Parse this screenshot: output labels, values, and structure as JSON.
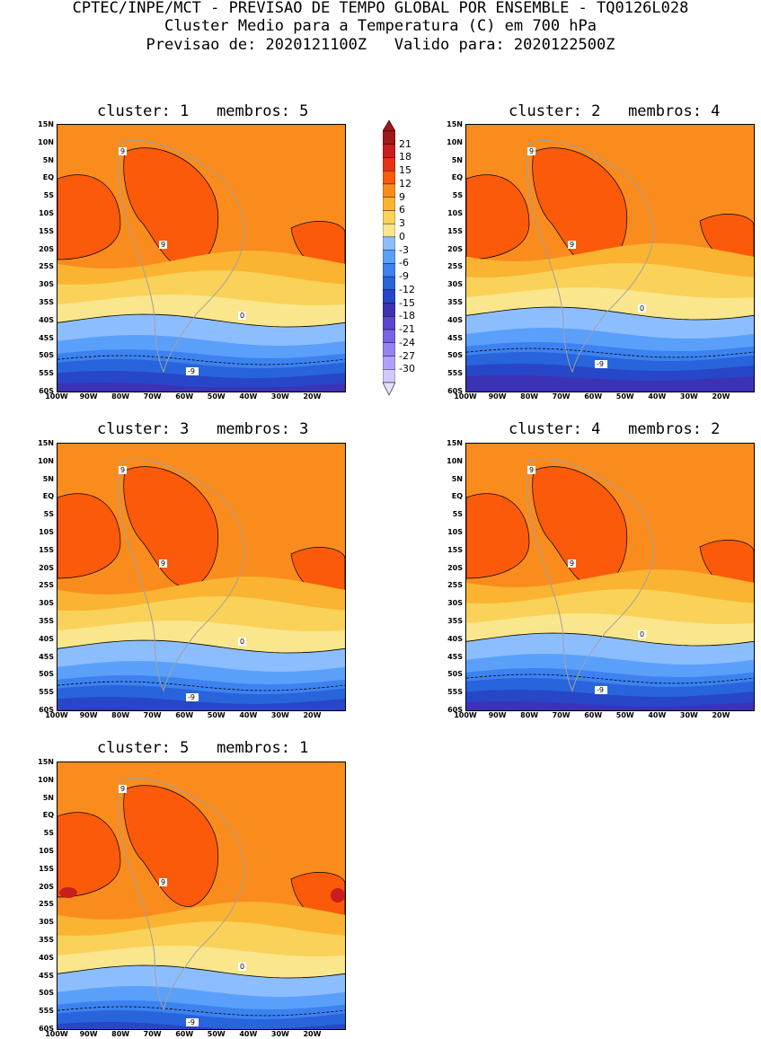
{
  "header": {
    "line1": "CPTEC/INPE/MCT - PREVISAO DE TEMPO GLOBAL POR ENSEMBLE - TQ0126L028",
    "line2": "Cluster Medio para a Temperatura (C) em 700 hPa",
    "line3": "Previsao de: 2020121100Z   Valido para: 2020122500Z"
  },
  "lat_labels": [
    "15N",
    "10N",
    "5N",
    "EQ",
    "5S",
    "10S",
    "15S",
    "20S",
    "25S",
    "30S",
    "35S",
    "40S",
    "45S",
    "50S",
    "55S",
    "60S"
  ],
  "lon_labels": [
    "100W",
    "90W",
    "80W",
    "70W",
    "60W",
    "50W",
    "40W",
    "30W",
    "20W"
  ],
  "panels": [
    {
      "cluster_label": "cluster:",
      "cluster_num": "1",
      "members_label": "membros:",
      "members_num": "5"
    },
    {
      "cluster_label": "cluster:",
      "cluster_num": "2",
      "members_label": "membros:",
      "members_num": "4"
    },
    {
      "cluster_label": "cluster:",
      "cluster_num": "3",
      "members_label": "membros:",
      "members_num": "3"
    },
    {
      "cluster_label": "cluster:",
      "cluster_num": "4",
      "members_label": "membros:",
      "members_num": "2"
    },
    {
      "cluster_label": "cluster:",
      "cluster_num": "5",
      "members_label": "membros:",
      "members_num": "1"
    }
  ],
  "contour_labels": {
    "warm": "9",
    "zero": "0",
    "cold": "-9"
  },
  "colorbar": {
    "labels": [
      "21",
      "18",
      "15",
      "12",
      "9",
      "6",
      "3",
      "0",
      "-3",
      "-6",
      "-9",
      "-12",
      "-15",
      "-18",
      "-21",
      "-24",
      "-27",
      "-30"
    ],
    "colors": [
      "#a01818",
      "#c81e1e",
      "#e83214",
      "#fa5a0a",
      "#fa8c1e",
      "#fab432",
      "#fad25a",
      "#fae68c",
      "#8cbeff",
      "#5aa0fa",
      "#3c82f0",
      "#2864dc",
      "#2846c8",
      "#3c32b4",
      "#5a46d2",
      "#7864e6",
      "#9682f0",
      "#b4a0fa",
      "#d2c8ff"
    ]
  }
}
